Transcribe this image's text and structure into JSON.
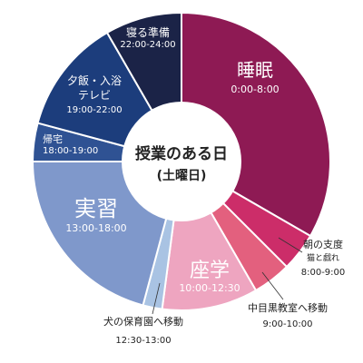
{
  "chart_data": {
    "type": "pie",
    "variant": "donut",
    "unit": "hours",
    "start_angle": "top, clockwise",
    "center_title": "授業のある日",
    "center_subtitle": "(土曜日)",
    "slices": [
      {
        "label": "睡眠",
        "time": "0:00-8:00",
        "value": 8,
        "color": "#8e1a54"
      },
      {
        "label": "朝の支度",
        "sub": "猫と戯れ",
        "time": "8:00-9:00",
        "value": 1,
        "color": "#cc2d69"
      },
      {
        "label": "中目黒教室へ移動",
        "time": "9:00-10:00",
        "value": 1,
        "color": "#e3607e"
      },
      {
        "label": "座学",
        "time": "10:00-12:30",
        "value": 2.5,
        "color": "#eea5c0"
      },
      {
        "label": "犬の保育園へ移動",
        "time": "12:30-13:00",
        "value": 0.5,
        "color": "#a9c3e3"
      },
      {
        "label": "実習",
        "time": "13:00-18:00",
        "value": 5,
        "color": "#7f98cb"
      },
      {
        "label": "帰宅",
        "time": "18:00-19:00",
        "value": 1,
        "color": "#2f5293"
      },
      {
        "label": "夕飯・入浴\nテレビ",
        "time": "19:00-22:00",
        "value": 3,
        "color": "#1c3d7c"
      },
      {
        "label": "寝る準備",
        "time": "22:00-24:00",
        "value": 2,
        "color": "#1b2347"
      }
    ]
  }
}
